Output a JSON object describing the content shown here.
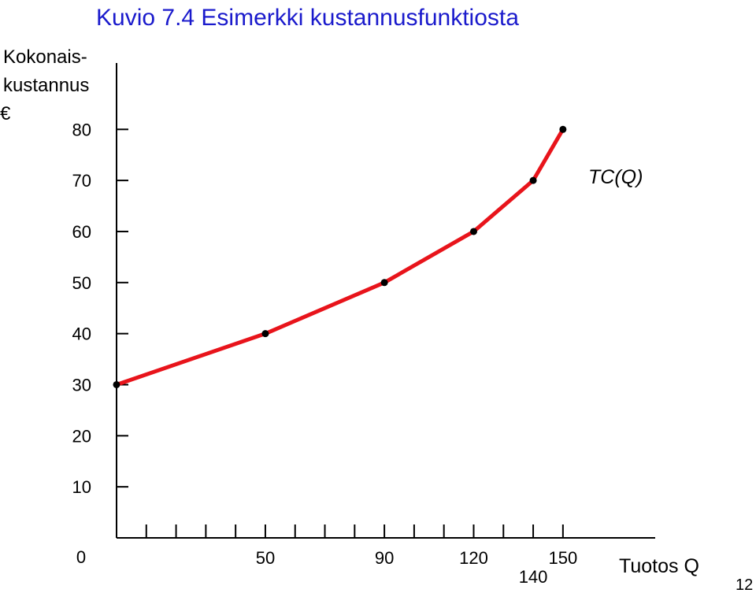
{
  "chart_data": {
    "type": "line",
    "title": "Kuvio 7.4 Esimerkki kustannusfunktiosta",
    "y_label": [
      "Kokonais-",
      "kustannus",
      "€"
    ],
    "x_label": "Tuotos Q",
    "series_label": "TC(Q)",
    "page_number": "12",
    "x": [
      0,
      50,
      90,
      120,
      140,
      150
    ],
    "series": [
      {
        "name": "TC(Q)",
        "color": "#e8141b",
        "values": [
          30,
          40,
          50,
          60,
          70,
          80
        ]
      }
    ],
    "xlim": [
      0,
      181
    ],
    "ylim": [
      0,
      93
    ],
    "xticks": [
      0,
      50,
      90,
      120,
      140,
      150
    ],
    "xminorticks": [
      10,
      20,
      30,
      40,
      50,
      60,
      70,
      80,
      90,
      100,
      110,
      120,
      130,
      140,
      150
    ],
    "yticks": [
      0,
      10,
      20,
      30,
      40,
      50,
      60,
      70,
      80
    ]
  }
}
